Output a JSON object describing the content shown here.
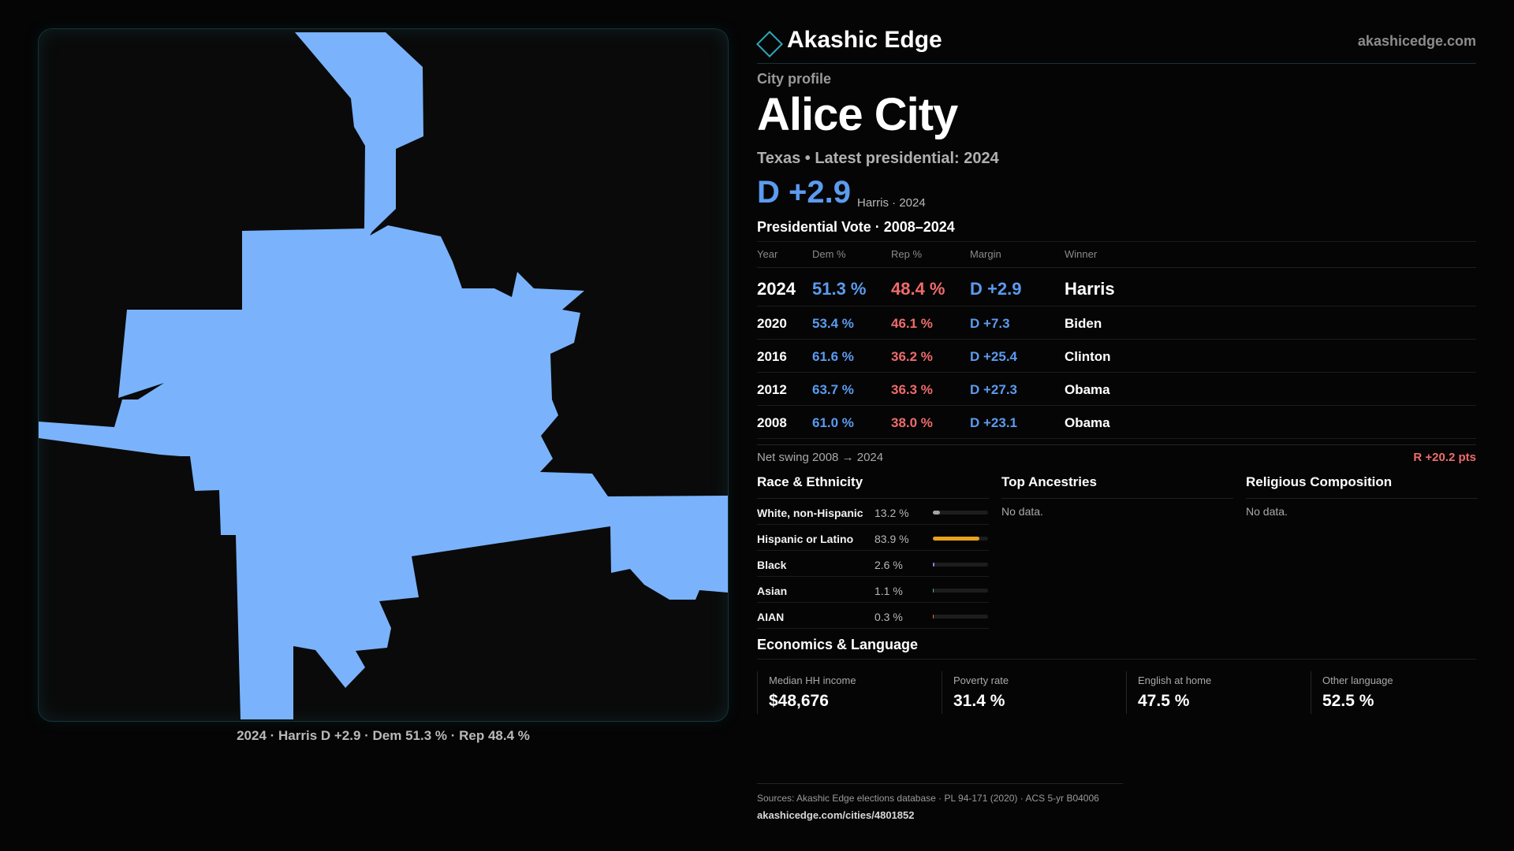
{
  "map": {
    "fill_color": "#7ab3fb",
    "caption": "2024 · Harris D +2.9 · Dem 51.3 % · Rep 48.4 %"
  },
  "brand": {
    "name": "Akashic Edge",
    "url": "akashicedge.com",
    "accent": "#2fa7b8"
  },
  "profile": {
    "eyebrow": "City profile",
    "city": "Alice City",
    "subtitle": "Texas • Latest presidential: 2024",
    "margin": "D +2.9",
    "margin_note": "Harris · 2024"
  },
  "votes": {
    "title": "Presidential Vote · 2008–2024",
    "headers": {
      "year": "Year",
      "dem": "Dem %",
      "rep": "Rep %",
      "margin": "Margin",
      "winner": "Winner"
    },
    "rows": [
      {
        "year": "2024",
        "dem": "51.3 %",
        "rep": "48.4 %",
        "margin": "D +2.9",
        "winner": "Harris"
      },
      {
        "year": "2020",
        "dem": "53.4 %",
        "rep": "46.1 %",
        "margin": "D +7.3",
        "winner": "Biden"
      },
      {
        "year": "2016",
        "dem": "61.6 %",
        "rep": "36.2 %",
        "margin": "D +25.4",
        "winner": "Clinton"
      },
      {
        "year": "2012",
        "dem": "63.7 %",
        "rep": "36.3 %",
        "margin": "D +27.3",
        "winner": "Obama"
      },
      {
        "year": "2008",
        "dem": "61.0 %",
        "rep": "38.0 %",
        "margin": "D +23.1",
        "winner": "Obama"
      }
    ],
    "swing_label": "Net swing 2008 → 2024",
    "swing_value": "R +20.2 pts"
  },
  "race": {
    "title": "Race & Ethnicity",
    "rows": [
      {
        "label": "White, non-Hispanic",
        "pct": "13.2 %",
        "value": 13.2,
        "color": "#a0a4ab"
      },
      {
        "label": "Hispanic or Latino",
        "pct": "83.9 %",
        "value": 83.9,
        "color": "#e8a21b"
      },
      {
        "label": "Black",
        "pct": "2.6 %",
        "value": 2.6,
        "color": "#8f7cf0"
      },
      {
        "label": "Asian",
        "pct": "1.1 %",
        "value": 1.1,
        "color": "#3fb6a8"
      },
      {
        "label": "AIAN",
        "pct": "0.3 %",
        "value": 0.3,
        "color": "#e0733a"
      }
    ]
  },
  "ancestries": {
    "title": "Top Ancestries",
    "text": "No data."
  },
  "religion": {
    "title": "Religious Composition",
    "text": "No data."
  },
  "economics": {
    "title": "Economics & Language",
    "items": [
      {
        "label": "Median HH income",
        "value": "$48,676"
      },
      {
        "label": "Poverty rate",
        "value": "31.4 %"
      },
      {
        "label": "English at home",
        "value": "47.5 %"
      },
      {
        "label": "Other language",
        "value": "52.5 %"
      }
    ]
  },
  "footer": {
    "sources": "Sources: Akashic Edge elections database · PL 94-171 (2020) · ACS 5-yr B04006",
    "link": "akashicedge.com/cities/4801852"
  }
}
